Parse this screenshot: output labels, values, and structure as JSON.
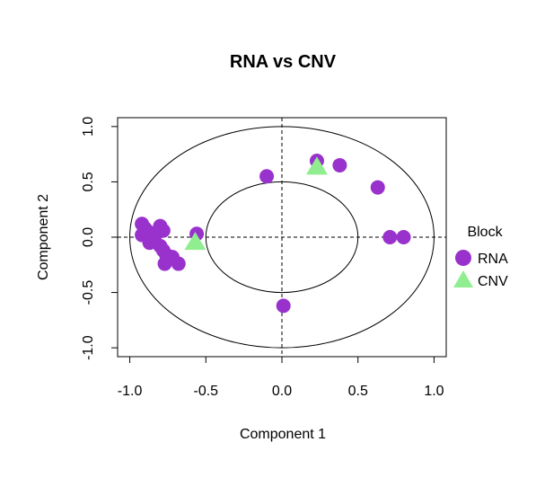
{
  "chart_data": {
    "type": "scatter",
    "title": "RNA vs CNV",
    "xlabel": "Component  1",
    "ylabel": "Component  2",
    "xlim": [
      -1.08,
      1.08
    ],
    "ylim": [
      -1.08,
      1.08
    ],
    "xticks": [
      -1.0,
      -0.5,
      0.0,
      0.5,
      1.0
    ],
    "xtick_labels": [
      "-1.0",
      "-0.5",
      "0.0",
      "0.5",
      "1.0"
    ],
    "yticks": [
      -1.0,
      -0.5,
      0.0,
      0.5,
      1.0
    ],
    "ytick_labels": [
      "-1.0",
      "-0.5",
      "0.0",
      "0.5",
      "1.0"
    ],
    "reference_circles_radius": [
      0.5,
      1.0
    ],
    "reference_lines": {
      "x": 0,
      "y": 0,
      "style": "dashed"
    },
    "grid": false,
    "legend": {
      "title": "Block",
      "position": "right",
      "entries": [
        {
          "label": "RNA",
          "marker": "circle",
          "color": "#9932CC"
        },
        {
          "label": "CNV",
          "marker": "triangle",
          "color": "#90EE90"
        }
      ]
    },
    "series": [
      {
        "name": "RNA",
        "marker": "circle",
        "color": "#9932CC",
        "points": [
          {
            "x": -0.92,
            "y": 0.12
          },
          {
            "x": -0.9,
            "y": 0.08
          },
          {
            "x": -0.92,
            "y": 0.02
          },
          {
            "x": -0.88,
            "y": 0.05
          },
          {
            "x": -0.85,
            "y": -0.02
          },
          {
            "x": -0.87,
            "y": -0.05
          },
          {
            "x": -0.82,
            "y": 0.04
          },
          {
            "x": -0.8,
            "y": 0.1
          },
          {
            "x": -0.78,
            "y": 0.06
          },
          {
            "x": -0.8,
            "y": -0.08
          },
          {
            "x": -0.78,
            "y": -0.12
          },
          {
            "x": -0.76,
            "y": -0.16
          },
          {
            "x": -0.75,
            "y": -0.2
          },
          {
            "x": -0.77,
            "y": -0.24
          },
          {
            "x": -0.72,
            "y": -0.18
          },
          {
            "x": -0.68,
            "y": -0.24
          },
          {
            "x": -0.56,
            "y": 0.03
          },
          {
            "x": -0.1,
            "y": 0.55
          },
          {
            "x": 0.23,
            "y": 0.69
          },
          {
            "x": 0.38,
            "y": 0.65
          },
          {
            "x": 0.63,
            "y": 0.45
          },
          {
            "x": 0.71,
            "y": 0.0
          },
          {
            "x": 0.8,
            "y": 0.0
          },
          {
            "x": 0.01,
            "y": -0.62
          }
        ]
      },
      {
        "name": "CNV",
        "marker": "triangle",
        "color": "#90EE90",
        "points": [
          {
            "x": -0.57,
            "y": -0.05
          },
          {
            "x": 0.23,
            "y": 0.63
          }
        ]
      }
    ]
  }
}
